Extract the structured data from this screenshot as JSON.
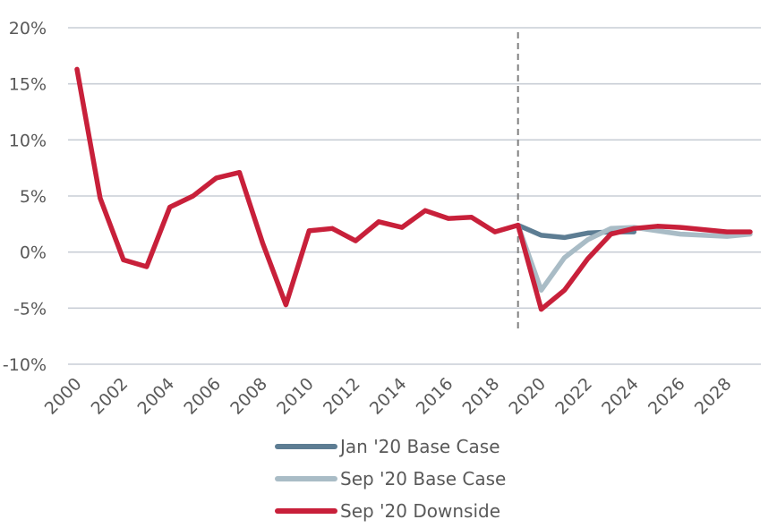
{
  "chart_data": {
    "type": "line",
    "title": "",
    "xlabel": "",
    "ylabel": "",
    "ylim": [
      -10,
      20
    ],
    "xlim": [
      2000,
      2029
    ],
    "y_ticks": [
      "20%",
      "15%",
      "10%",
      "5%",
      "0%",
      "-5%",
      "-10%"
    ],
    "y_tick_values": [
      20,
      15,
      10,
      5,
      0,
      -5,
      -10
    ],
    "x_ticks": [
      "2000",
      "2002",
      "2004",
      "2006",
      "2008",
      "2010",
      "2012",
      "2014",
      "2016",
      "2018",
      "2020",
      "2022",
      "2024",
      "2026",
      "2028"
    ],
    "x_tick_values": [
      2000,
      2002,
      2004,
      2006,
      2008,
      2010,
      2012,
      2014,
      2016,
      2018,
      2020,
      2022,
      2024,
      2026,
      2028
    ],
    "grid": true,
    "vertical_reference_line": 2019,
    "legend_position": "bottom",
    "series": [
      {
        "name": "Jan '20 Base Case",
        "color": "#5d7d93",
        "x": [
          2019,
          2020,
          2021,
          2022,
          2023,
          2024
        ],
        "y": [
          2.4,
          1.5,
          1.3,
          1.7,
          1.8,
          1.8
        ]
      },
      {
        "name": "Sep '20 Base Case",
        "color": "#a9bcc6",
        "x": [
          2019,
          2020,
          2021,
          2022,
          2023,
          2024,
          2025,
          2026,
          2027,
          2028,
          2029
        ],
        "y": [
          2.4,
          -3.4,
          -0.5,
          1.1,
          2.1,
          2.2,
          1.9,
          1.6,
          1.5,
          1.4,
          1.6
        ]
      },
      {
        "name": "Sep '20 Downside",
        "color": "#c8203a",
        "x": [
          2000,
          2001,
          2002,
          2003,
          2004,
          2005,
          2006,
          2007,
          2008,
          2009,
          2010,
          2011,
          2012,
          2013,
          2014,
          2015,
          2016,
          2017,
          2018,
          2019,
          2020,
          2021,
          2022,
          2023,
          2024,
          2025,
          2026,
          2027,
          2028,
          2029
        ],
        "y": [
          16.3,
          4.8,
          -0.7,
          -1.3,
          4.0,
          5.0,
          6.6,
          7.1,
          0.8,
          -4.7,
          1.9,
          2.1,
          1.0,
          2.7,
          2.2,
          3.7,
          3.0,
          3.1,
          1.8,
          2.4,
          -5.1,
          -3.4,
          -0.6,
          1.6,
          2.1,
          2.3,
          2.2,
          2.0,
          1.8,
          1.8
        ]
      }
    ]
  }
}
